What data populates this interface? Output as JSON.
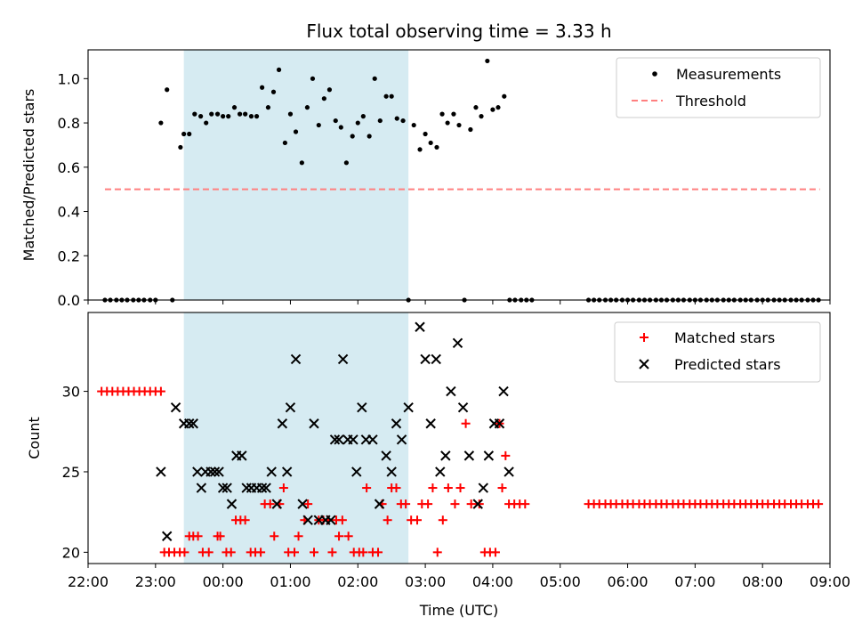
{
  "title": "Flux total observing time = 3.33 h",
  "colors": {
    "measurement": "#000000",
    "threshold": "#ff7f7f",
    "matched": "#ff0000",
    "predicted": "#000000",
    "span": "#add8e6"
  },
  "chart_data": [
    {
      "type": "scatter",
      "name": "top-panel",
      "ylabel": "Matched/Predicted stars",
      "xlabel": "",
      "xlim": [
        22.0,
        33.0
      ],
      "ylim": [
        0.0,
        1.13
      ],
      "yticks": [
        0.0,
        0.2,
        0.4,
        0.6,
        0.8,
        1.0
      ],
      "yticklabels": [
        "0.0",
        "0.2",
        "0.4",
        "0.6",
        "0.8",
        "1.0"
      ],
      "show_xticklabels": false,
      "span": [
        23.42,
        26.75
      ],
      "legend": {
        "placement": "top-right",
        "entries": [
          "Measurements",
          "Threshold"
        ]
      },
      "threshold": {
        "name": "Threshold",
        "value": 0.5,
        "x": [
          22.25,
          32.85
        ]
      },
      "series": [
        {
          "name": "Measurements",
          "x": [
            22.25,
            22.33,
            22.42,
            22.5,
            22.58,
            22.67,
            22.75,
            22.83,
            22.92,
            23.0,
            23.08,
            23.17,
            23.25,
            23.37,
            23.42,
            23.5,
            23.58,
            23.67,
            23.75,
            23.83,
            23.92,
            24.0,
            24.08,
            24.17,
            24.25,
            24.33,
            24.42,
            24.5,
            24.58,
            24.67,
            24.75,
            24.83,
            24.92,
            25.0,
            25.08,
            25.17,
            25.25,
            25.33,
            25.42,
            25.5,
            25.58,
            25.67,
            25.75,
            25.83,
            25.92,
            26.0,
            26.08,
            26.17,
            26.25,
            26.33,
            26.42,
            26.5,
            26.58,
            26.67,
            26.75,
            26.83,
            26.92,
            27.0,
            27.08,
            27.17,
            27.25,
            27.33,
            27.42,
            27.5,
            27.58,
            27.67,
            27.75,
            27.83,
            27.92,
            28.0,
            28.08,
            28.17,
            28.25,
            28.33,
            28.42,
            28.5,
            28.58,
            29.42,
            29.5,
            29.58,
            29.67,
            29.75,
            29.83,
            29.92,
            30.0,
            30.08,
            30.17,
            30.25,
            30.33,
            30.42,
            30.5,
            30.58,
            30.67,
            30.75,
            30.83,
            30.92,
            31.0,
            31.08,
            31.17,
            31.25,
            31.33,
            31.42,
            31.5,
            31.58,
            31.67,
            31.75,
            31.83,
            31.92,
            32.0,
            32.08,
            32.17,
            32.25,
            32.33,
            32.42,
            32.5,
            32.58,
            32.67,
            32.75,
            32.83
          ],
          "y": [
            0.0,
            0.0,
            0.0,
            0.0,
            0.0,
            0.0,
            0.0,
            0.0,
            0.0,
            0.0,
            0.8,
            0.95,
            0.0,
            0.69,
            0.75,
            0.75,
            0.84,
            0.83,
            0.8,
            0.84,
            0.84,
            0.83,
            0.83,
            0.87,
            0.84,
            0.84,
            0.83,
            0.83,
            0.96,
            0.87,
            0.94,
            1.04,
            0.71,
            0.84,
            0.76,
            0.62,
            0.87,
            1.0,
            0.79,
            0.91,
            0.95,
            0.81,
            0.78,
            0.62,
            0.74,
            0.8,
            0.83,
            0.74,
            1.0,
            0.81,
            0.92,
            0.92,
            0.82,
            0.81,
            0.0,
            0.79,
            0.68,
            0.75,
            0.71,
            0.69,
            0.84,
            0.8,
            0.84,
            0.79,
            0.0,
            0.77,
            0.87,
            0.83,
            1.08,
            0.86,
            0.87,
            0.92,
            0.0,
            0.0,
            0.0,
            0.0,
            0.0,
            0.0,
            0.0,
            0.0,
            0.0,
            0.0,
            0.0,
            0.0,
            0.0,
            0.0,
            0.0,
            0.0,
            0.0,
            0.0,
            0.0,
            0.0,
            0.0,
            0.0,
            0.0,
            0.0,
            0.0,
            0.0,
            0.0,
            0.0,
            0.0,
            0.0,
            0.0,
            0.0,
            0.0,
            0.0,
            0.0,
            0.0,
            0.0,
            0.0,
            0.0,
            0.0,
            0.0,
            0.0,
            0.0,
            0.0,
            0.0,
            0.0,
            0.0
          ]
        }
      ]
    },
    {
      "type": "scatter",
      "name": "bottom-panel",
      "ylabel": "Count",
      "xlabel": "Time (UTC)",
      "xlim": [
        22.0,
        33.0
      ],
      "ylim": [
        19.3,
        34.9
      ],
      "yticks": [
        20,
        25,
        30
      ],
      "yticklabels": [
        "20",
        "25",
        "30"
      ],
      "xticks": [
        22,
        23,
        24,
        25,
        26,
        27,
        28,
        29,
        30,
        31,
        32,
        33
      ],
      "xticklabels": [
        "22:00",
        "23:00",
        "00:00",
        "01:00",
        "02:00",
        "03:00",
        "04:00",
        "05:00",
        "06:00",
        "07:00",
        "08:00",
        "09:00"
      ],
      "span": [
        23.42,
        26.75
      ],
      "legend": {
        "placement": "top-right",
        "entries": [
          "Matched stars",
          "Predicted stars"
        ]
      },
      "series": [
        {
          "name": "Matched stars",
          "marker": "plus",
          "x": [
            22.2,
            22.28,
            22.36,
            22.44,
            22.52,
            22.6,
            22.68,
            22.76,
            22.84,
            22.92,
            23.0,
            23.08,
            23.13,
            23.2,
            23.28,
            23.36,
            23.43,
            23.5,
            23.56,
            23.63,
            23.7,
            23.79,
            23.92,
            23.96,
            24.05,
            24.12,
            24.19,
            24.26,
            24.33,
            24.41,
            24.48,
            24.56,
            24.62,
            24.7,
            24.76,
            24.84,
            24.9,
            24.97,
            25.06,
            25.12,
            25.21,
            25.26,
            25.35,
            25.42,
            25.49,
            25.56,
            25.62,
            25.68,
            25.72,
            25.77,
            25.86,
            25.94,
            26.02,
            26.08,
            26.13,
            26.22,
            26.3,
            26.36,
            26.44,
            26.5,
            26.57,
            26.64,
            26.71,
            26.79,
            26.88,
            26.95,
            27.04,
            27.11,
            27.18,
            27.26,
            27.34,
            27.44,
            27.52,
            27.6,
            27.68,
            27.8,
            27.88,
            27.96,
            28.04,
            28.1,
            28.14,
            28.19,
            28.24,
            28.32,
            28.4,
            28.48,
            29.42,
            29.5,
            29.58,
            29.67,
            29.75,
            29.83,
            29.92,
            30.0,
            30.08,
            30.17,
            30.25,
            30.33,
            30.42,
            30.5,
            30.58,
            30.67,
            30.75,
            30.83,
            30.92,
            31.0,
            31.08,
            31.17,
            31.25,
            31.33,
            31.42,
            31.5,
            31.58,
            31.67,
            31.75,
            31.83,
            31.92,
            32.0,
            32.08,
            32.17,
            32.25,
            32.33,
            32.42,
            32.5,
            32.58,
            32.67,
            32.75,
            32.83
          ],
          "y": [
            30,
            30,
            30,
            30,
            30,
            30,
            30,
            30,
            30,
            30,
            30,
            30,
            20,
            20,
            20,
            20,
            20,
            21,
            21,
            21,
            20,
            20,
            21,
            21,
            20,
            20,
            22,
            22,
            22,
            20,
            20,
            20,
            23,
            23,
            21,
            23,
            24,
            20,
            20,
            21,
            22,
            23,
            20,
            22,
            22,
            22,
            20,
            22,
            21,
            22,
            21,
            20,
            20,
            20,
            24,
            20,
            20,
            23,
            22,
            24,
            24,
            23,
            23,
            22,
            22,
            23,
            23,
            24,
            20,
            22,
            24,
            23,
            24,
            28,
            23,
            23,
            20,
            20,
            20,
            28,
            24,
            26,
            23,
            23,
            23,
            23,
            23,
            23,
            23,
            23,
            23,
            23,
            23,
            23,
            23,
            23,
            23,
            23,
            23,
            23,
            23,
            23,
            23,
            23,
            23,
            23,
            23,
            23,
            23,
            23,
            23,
            23,
            23,
            23,
            23,
            23,
            23,
            23,
            23,
            23,
            23,
            23,
            23,
            23,
            23,
            23,
            23,
            23
          ]
        },
        {
          "name": "Predicted stars",
          "marker": "x",
          "x": [
            23.08,
            23.17,
            23.3,
            23.42,
            23.5,
            23.56,
            23.62,
            23.68,
            23.74,
            23.82,
            23.88,
            23.94,
            24.0,
            24.06,
            24.13,
            24.2,
            24.28,
            24.35,
            24.42,
            24.5,
            24.58,
            24.64,
            24.72,
            24.8,
            24.88,
            24.95,
            25.0,
            25.08,
            25.18,
            25.26,
            25.35,
            25.42,
            25.52,
            25.6,
            25.66,
            25.72,
            25.78,
            25.85,
            25.93,
            25.98,
            26.06,
            26.12,
            26.22,
            26.32,
            26.42,
            26.5,
            26.57,
            26.65,
            26.75,
            26.92,
            27.0,
            27.08,
            27.16,
            27.22,
            27.3,
            27.38,
            27.48,
            27.56,
            27.65,
            27.78,
            27.86,
            27.94,
            28.02,
            28.1,
            28.16,
            28.24
          ],
          "y": [
            25,
            21,
            29,
            28,
            28,
            28,
            25,
            24,
            25,
            25,
            25,
            25,
            24,
            24,
            23,
            26,
            26,
            24,
            24,
            24,
            24,
            24,
            25,
            23,
            28,
            25,
            29,
            32,
            23,
            22,
            28,
            22,
            22,
            22,
            27,
            27,
            32,
            27,
            27,
            25,
            29,
            27,
            27,
            23,
            26,
            25,
            28,
            27,
            29,
            34,
            32,
            28,
            32,
            25,
            26,
            30,
            33,
            29,
            26,
            23,
            24,
            26,
            28,
            28,
            30,
            25
          ]
        }
      ]
    }
  ]
}
